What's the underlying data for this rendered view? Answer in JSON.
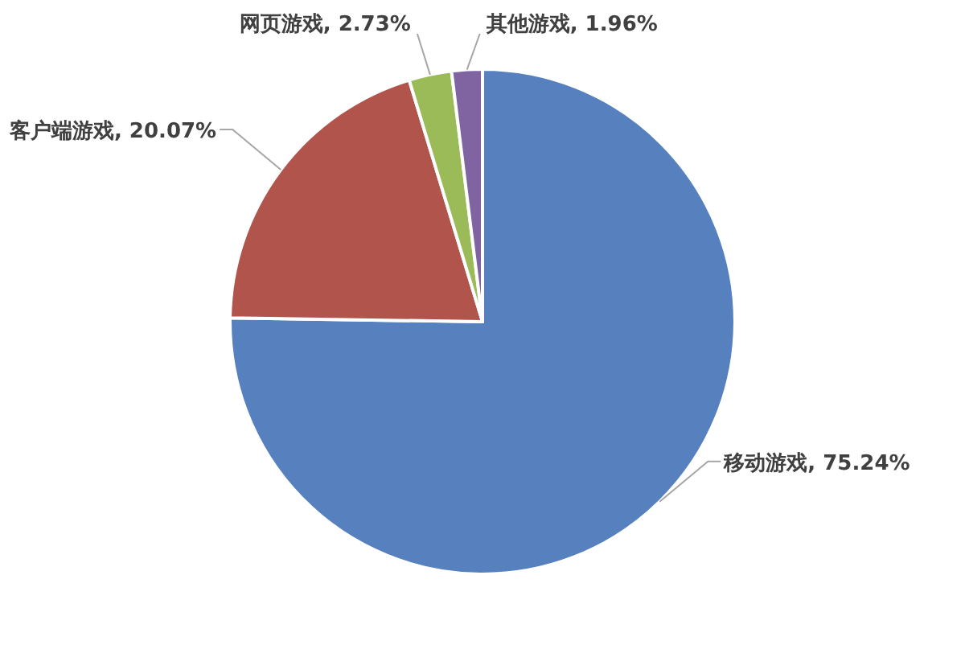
{
  "chart_data": {
    "type": "pie",
    "categories": [
      "移动游戏",
      "客户端游戏",
      "网页游戏",
      "其他游戏"
    ],
    "values": [
      75.24,
      20.07,
      2.73,
      1.96
    ],
    "value_labels": [
      "75.24%",
      "20.07%",
      "2.73%",
      "1.96%"
    ],
    "colors": [
      "#5681be",
      "#b0544c",
      "#9bbb59",
      "#8064a2"
    ]
  }
}
